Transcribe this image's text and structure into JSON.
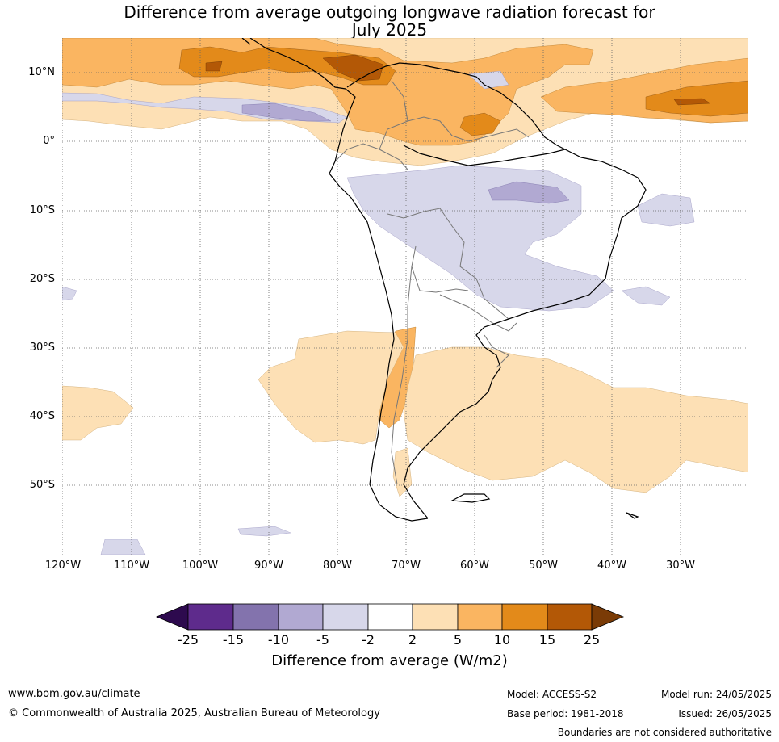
{
  "title_line1": "Difference from average outgoing longwave radiation forecast for",
  "title_line2": "July 2025",
  "lat_labels": [
    "10°N",
    "0°",
    "10°S",
    "20°S",
    "30°S",
    "40°S",
    "50°S"
  ],
  "lon_labels": [
    "120°W",
    "110°W",
    "100°W",
    "90°W",
    "80°W",
    "70°W",
    "60°W",
    "50°W",
    "40°W",
    "30°W"
  ],
  "colorbar": {
    "ticks": [
      "-25",
      "-15",
      "-10",
      "-5",
      "-2",
      "2",
      "5",
      "10",
      "15",
      "25"
    ],
    "colors": [
      "#2d0a4e",
      "#5e2b8c",
      "#8373ad",
      "#b1a9d2",
      "#d7d7ea",
      "#ffffff",
      "#fde0b5",
      "#fab561",
      "#e38a1a",
      "#b35806",
      "#7a3b06"
    ],
    "label": "Difference from average (W/m2)"
  },
  "footer": {
    "website": "www.bom.gov.au/climate",
    "copyright": "© Commonwealth of Australia 2025, Australian Bureau of Meteorology",
    "model": "Model: ACCESS-S2",
    "base_period": "Base period: 1981-2018",
    "model_run": "Model run: 24/05/2025",
    "issued": "Issued: 26/05/2025",
    "disclaimer": "Boundaries are not considered authoritative"
  }
}
